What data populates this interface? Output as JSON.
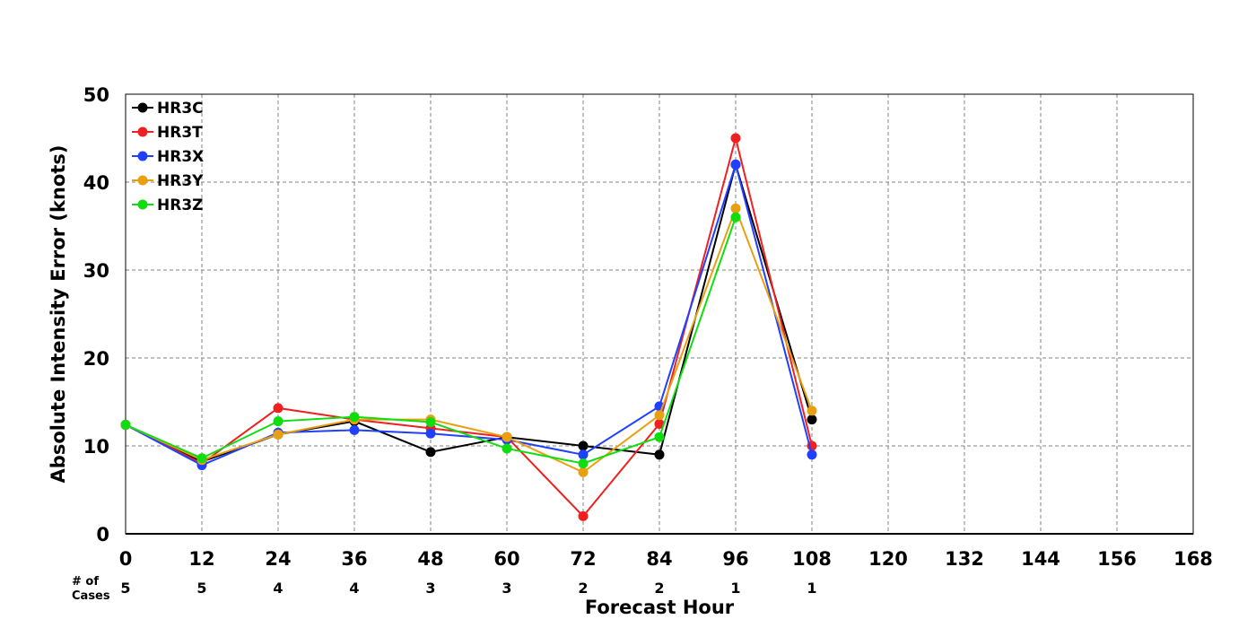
{
  "chart_data": {
    "type": "line",
    "xlabel": "Forecast Hour",
    "ylabel": "Absolute Intensity Error (knots)",
    "xlim": [
      0,
      168
    ],
    "ylim": [
      0,
      50
    ],
    "x_ticks": [
      0,
      12,
      24,
      36,
      48,
      60,
      72,
      84,
      96,
      108,
      120,
      132,
      144,
      156,
      168
    ],
    "y_ticks": [
      0,
      10,
      20,
      30,
      40,
      50
    ],
    "grid": true,
    "legend_position": "top-left",
    "cases_header": [
      "# of",
      "Cases"
    ],
    "cases": {
      "x": [
        0,
        12,
        24,
        36,
        48,
        60,
        72,
        84,
        96,
        108
      ],
      "counts": [
        "5",
        "5",
        "4",
        "4",
        "3",
        "3",
        "2",
        "2",
        "1",
        "1"
      ]
    },
    "series": [
      {
        "name": "HR3C",
        "color": "#000000",
        "x": [
          0,
          12,
          24,
          36,
          48,
          60,
          72,
          84,
          96,
          108
        ],
        "values": [
          12.4,
          8.2,
          11.3,
          12.8,
          9.3,
          11.0,
          10.0,
          9.0,
          42.0,
          13.0
        ]
      },
      {
        "name": "HR3T",
        "color": "#f02020",
        "x": [
          0,
          12,
          24,
          36,
          48,
          60,
          72,
          84,
          96,
          108
        ],
        "values": [
          12.4,
          8.0,
          14.3,
          13.0,
          12.0,
          11.0,
          2.0,
          12.5,
          45.0,
          10.0
        ]
      },
      {
        "name": "HR3X",
        "color": "#2040ff",
        "x": [
          0,
          12,
          24,
          36,
          48,
          60,
          72,
          84,
          96,
          108
        ],
        "values": [
          12.4,
          7.8,
          11.5,
          11.8,
          11.4,
          10.7,
          9.0,
          14.5,
          42.0,
          9.0
        ]
      },
      {
        "name": "HR3Y",
        "color": "#e8a010",
        "x": [
          0,
          12,
          24,
          36,
          48,
          60,
          72,
          84,
          96,
          108
        ],
        "values": [
          12.4,
          8.4,
          11.3,
          13.0,
          13.0,
          11.0,
          7.0,
          13.5,
          37.0,
          14.0
        ]
      },
      {
        "name": "HR3Z",
        "color": "#10dd10",
        "x": [
          0,
          12,
          24,
          36,
          48,
          60,
          72,
          84,
          96
        ],
        "values": [
          12.4,
          8.6,
          12.8,
          13.3,
          12.7,
          9.7,
          8.0,
          11.0,
          36.0
        ]
      }
    ]
  }
}
